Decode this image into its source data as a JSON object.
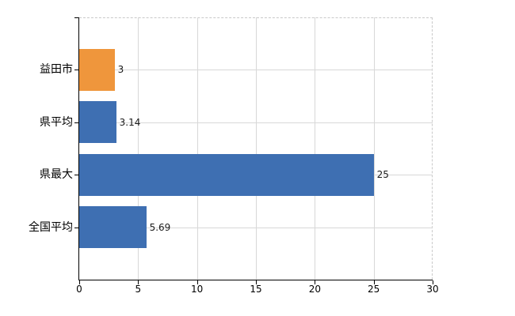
{
  "chart_data": {
    "type": "bar",
    "orientation": "horizontal",
    "title": "",
    "categories": [
      "益田市",
      "県平均",
      "県最大",
      "全国平均"
    ],
    "values": [
      3,
      3.14,
      25,
      5.69
    ],
    "value_labels": [
      "3",
      "3.14",
      "25",
      "5.69"
    ],
    "xlim": [
      0,
      30
    ],
    "x_ticks": [
      0,
      5,
      10,
      15,
      20,
      25,
      30
    ],
    "grid": true,
    "legend_position": "none",
    "bar_colors": [
      "#EF963C",
      "#3E6FB2",
      "#3E6FB2",
      "#3E6FB2"
    ],
    "colors": {
      "highlight_bar": "#EF963C",
      "default_bar": "#3E6FB2",
      "gridline": "#d8d8d8",
      "dashed_border": "#c9c9c9",
      "axis": "#000000",
      "value_label_text": "#1a1a1a",
      "background": "#ffffff"
    }
  }
}
